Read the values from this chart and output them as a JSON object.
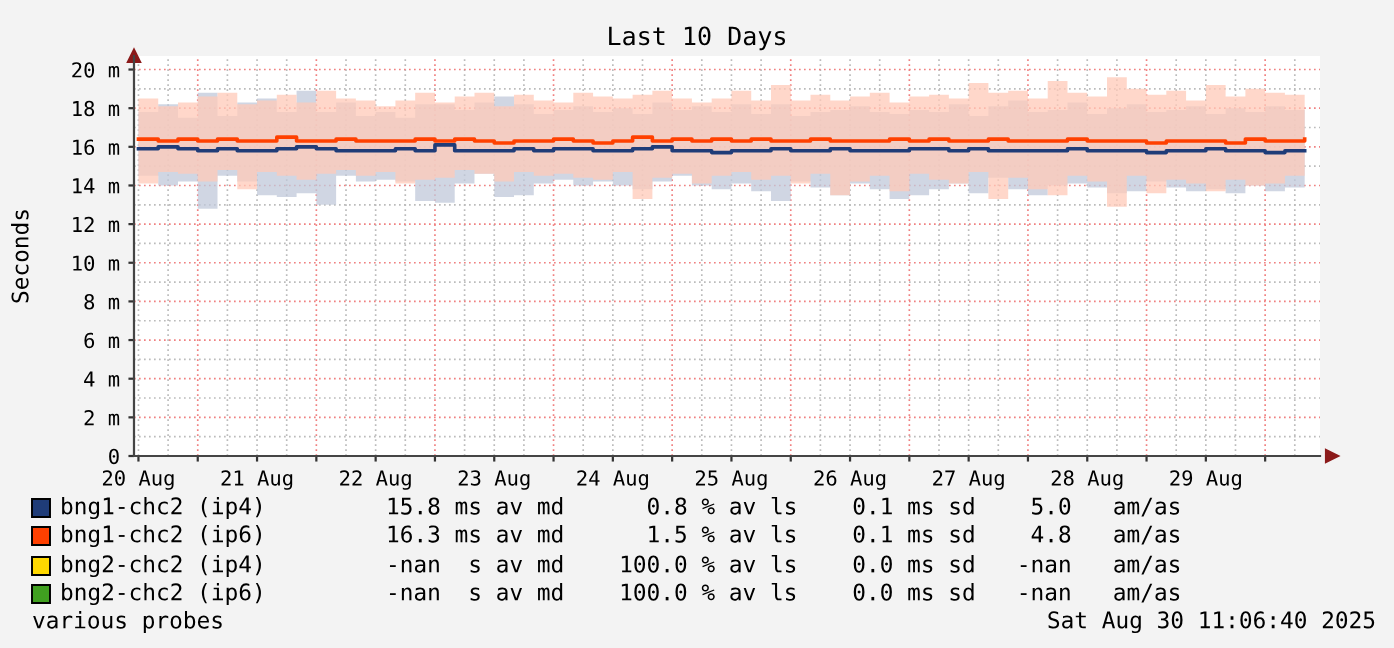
{
  "chart_data": {
    "type": "step",
    "title": "Last 10 Days",
    "ylabel": "Seconds",
    "x": [
      "2025-08-20T12:00",
      "2025-08-20T16:00",
      "2025-08-20T20:00",
      "2025-08-21T00:00",
      "2025-08-21T04:00",
      "2025-08-21T08:00",
      "2025-08-21T12:00",
      "2025-08-21T16:00",
      "2025-08-21T20:00",
      "2025-08-22T00:00",
      "2025-08-22T04:00",
      "2025-08-22T08:00",
      "2025-08-22T12:00",
      "2025-08-22T16:00",
      "2025-08-22T20:00",
      "2025-08-23T00:00",
      "2025-08-23T04:00",
      "2025-08-23T08:00",
      "2025-08-23T12:00",
      "2025-08-23T16:00",
      "2025-08-23T20:00",
      "2025-08-24T00:00",
      "2025-08-24T04:00",
      "2025-08-24T08:00",
      "2025-08-24T12:00",
      "2025-08-24T16:00",
      "2025-08-24T20:00",
      "2025-08-25T00:00",
      "2025-08-25T04:00",
      "2025-08-25T08:00",
      "2025-08-25T12:00",
      "2025-08-25T16:00",
      "2025-08-25T20:00",
      "2025-08-26T00:00",
      "2025-08-26T04:00",
      "2025-08-26T08:00",
      "2025-08-26T12:00",
      "2025-08-26T16:00",
      "2025-08-26T20:00",
      "2025-08-27T00:00",
      "2025-08-27T04:00",
      "2025-08-27T08:00",
      "2025-08-27T12:00",
      "2025-08-27T16:00",
      "2025-08-27T20:00",
      "2025-08-28T00:00",
      "2025-08-28T04:00",
      "2025-08-28T08:00",
      "2025-08-28T12:00",
      "2025-08-28T16:00",
      "2025-08-28T20:00",
      "2025-08-29T00:00",
      "2025-08-29T04:00",
      "2025-08-29T08:00",
      "2025-08-29T12:00",
      "2025-08-29T16:00",
      "2025-08-29T20:00",
      "2025-08-30T00:00",
      "2025-08-30T04:00",
      "2025-08-30T08:00"
    ],
    "series": [
      {
        "name": "bng1-chc2 (ip4)",
        "color": "#1f3c78",
        "values": [
          15.9,
          16.0,
          15.9,
          15.8,
          15.9,
          15.8,
          15.8,
          15.9,
          16.0,
          15.9,
          15.8,
          15.8,
          15.8,
          15.9,
          15.8,
          16.1,
          15.8,
          15.8,
          15.8,
          15.9,
          15.8,
          15.9,
          15.9,
          15.8,
          15.8,
          15.9,
          16.0,
          15.8,
          15.8,
          15.7,
          15.8,
          15.8,
          15.9,
          15.8,
          15.8,
          15.9,
          15.8,
          15.8,
          15.8,
          15.9,
          15.9,
          15.8,
          15.9,
          15.8,
          15.8,
          15.8,
          15.8,
          15.9,
          15.8,
          15.8,
          15.8,
          15.7,
          15.8,
          15.8,
          15.9,
          15.8,
          15.8,
          15.7,
          15.8,
          15.8
        ],
        "lower": [
          14.5,
          14.0,
          14.2,
          12.8,
          14.5,
          14.2,
          13.5,
          13.4,
          13.6,
          13.0,
          14.5,
          14.2,
          14.3,
          14.2,
          13.2,
          13.1,
          14.1,
          14.6,
          13.4,
          13.5,
          14.1,
          14.3,
          14.0,
          14.2,
          14.0,
          13.8,
          14.2,
          14.5,
          14.0,
          13.8,
          14.1,
          13.7,
          13.2,
          14.2,
          13.9,
          13.5,
          14.1,
          13.8,
          13.3,
          13.5,
          13.8,
          14.1,
          13.6,
          14.4,
          13.8,
          13.5,
          14.0,
          14.1,
          13.9,
          13.6,
          13.7,
          14.2,
          13.9,
          13.7,
          13.8,
          13.6,
          14.0,
          13.7,
          13.9,
          14.0
        ],
        "upper": [
          17.8,
          18.2,
          17.5,
          18.8,
          17.6,
          18.3,
          18.5,
          17.8,
          18.9,
          17.8,
          18.3,
          17.6,
          17.8,
          17.5,
          18.2,
          18.2,
          17.9,
          18.3,
          18.6,
          18.2,
          17.7,
          17.9,
          18.1,
          17.8,
          18.0,
          17.7,
          18.3,
          17.9,
          18.1,
          17.8,
          18.2,
          17.7,
          18.2,
          17.6,
          17.8,
          17.9,
          18.1,
          17.8,
          17.7,
          17.9,
          17.8,
          18.2,
          17.6,
          18.1,
          18.4,
          17.8,
          17.9,
          18.3,
          17.7,
          18.0,
          18.2,
          17.8,
          17.9,
          18.1,
          17.7,
          18.0,
          17.8,
          18.1,
          17.9,
          17.8
        ]
      },
      {
        "name": "bng1-chc2 (ip6)",
        "color": "#ff4000",
        "values": [
          16.4,
          16.3,
          16.4,
          16.3,
          16.4,
          16.3,
          16.3,
          16.5,
          16.3,
          16.3,
          16.4,
          16.3,
          16.3,
          16.3,
          16.4,
          16.3,
          16.4,
          16.3,
          16.2,
          16.3,
          16.3,
          16.4,
          16.3,
          16.2,
          16.3,
          16.5,
          16.3,
          16.4,
          16.3,
          16.4,
          16.3,
          16.4,
          16.3,
          16.3,
          16.4,
          16.3,
          16.3,
          16.3,
          16.4,
          16.3,
          16.4,
          16.3,
          16.3,
          16.4,
          16.3,
          16.3,
          16.3,
          16.4,
          16.3,
          16.3,
          16.3,
          16.2,
          16.3,
          16.3,
          16.3,
          16.2,
          16.4,
          16.3,
          16.3,
          16.4
        ],
        "lower": [
          14.1,
          14.7,
          14.6,
          14.2,
          14.8,
          13.8,
          14.7,
          14.5,
          14.3,
          14.6,
          14.8,
          14.5,
          14.7,
          14.1,
          14.3,
          14.4,
          14.8,
          14.6,
          14.2,
          14.7,
          14.5,
          14.6,
          14.4,
          14.3,
          14.7,
          13.3,
          14.4,
          14.6,
          14.1,
          14.5,
          14.7,
          14.3,
          14.5,
          14.1,
          14.6,
          13.5,
          14.2,
          14.5,
          13.7,
          14.6,
          14.3,
          14.1,
          14.7,
          13.3,
          14.4,
          13.8,
          13.5,
          14.5,
          14.2,
          12.9,
          14.5,
          13.6,
          14.3,
          14.1,
          13.7,
          14.3,
          14.0,
          14.1,
          14.5,
          14.2
        ],
        "upper": [
          18.5,
          18.1,
          18.3,
          18.6,
          18.8,
          18.2,
          18.4,
          18.7,
          18.3,
          18.9,
          18.5,
          18.4,
          18.1,
          18.4,
          18.8,
          18.3,
          18.6,
          18.8,
          18.1,
          18.7,
          18.4,
          18.3,
          18.8,
          18.6,
          18.5,
          18.7,
          18.9,
          18.5,
          18.3,
          18.5,
          18.9,
          18.4,
          19.2,
          18.4,
          18.7,
          18.4,
          18.6,
          18.8,
          18.3,
          18.6,
          18.7,
          18.5,
          19.3,
          18.8,
          18.9,
          18.5,
          19.4,
          18.8,
          18.6,
          19.6,
          19.0,
          18.7,
          18.9,
          18.4,
          19.2,
          18.6,
          19.0,
          18.8,
          18.7,
          18.6
        ]
      },
      {
        "name": "bng2-chc2 (ip4)",
        "color": "#ffd800",
        "values": [
          null,
          null,
          null,
          null,
          null,
          null,
          null,
          null,
          null,
          null,
          null,
          null,
          null,
          null,
          null,
          null,
          null,
          null,
          null,
          null,
          null,
          null,
          null,
          null,
          null,
          null,
          null,
          null,
          null,
          null,
          null,
          null,
          null,
          null,
          null,
          null,
          null,
          null,
          null,
          null,
          null,
          null,
          null,
          null,
          null,
          null,
          null,
          null,
          null,
          null,
          null,
          null,
          null,
          null,
          null,
          null,
          null,
          null,
          null,
          null
        ]
      },
      {
        "name": "bng2-chc2 (ip6)",
        "color": "#40a020",
        "values": [
          null,
          null,
          null,
          null,
          null,
          null,
          null,
          null,
          null,
          null,
          null,
          null,
          null,
          null,
          null,
          null,
          null,
          null,
          null,
          null,
          null,
          null,
          null,
          null,
          null,
          null,
          null,
          null,
          null,
          null,
          null,
          null,
          null,
          null,
          null,
          null,
          null,
          null,
          null,
          null,
          null,
          null,
          null,
          null,
          null,
          null,
          null,
          null,
          null,
          null,
          null,
          null,
          null,
          null,
          null,
          null,
          null,
          null,
          null,
          null
        ]
      }
    ],
    "xlim": [
      "2025-08-20T11:06",
      "2025-08-30T11:06"
    ],
    "xticks": [
      {
        "value": "2025-08-20T12:00",
        "label": "20 Aug"
      },
      {
        "value": "2025-08-21T00:00",
        "label": null
      },
      {
        "value": "2025-08-21T12:00",
        "label": "21 Aug"
      },
      {
        "value": "2025-08-22T00:00",
        "label": null
      },
      {
        "value": "2025-08-22T12:00",
        "label": "22 Aug"
      },
      {
        "value": "2025-08-23T00:00",
        "label": null
      },
      {
        "value": "2025-08-23T12:00",
        "label": "23 Aug"
      },
      {
        "value": "2025-08-24T00:00",
        "label": null
      },
      {
        "value": "2025-08-24T12:00",
        "label": "24 Aug"
      },
      {
        "value": "2025-08-25T00:00",
        "label": null
      },
      {
        "value": "2025-08-25T12:00",
        "label": "25 Aug"
      },
      {
        "value": "2025-08-26T00:00",
        "label": null
      },
      {
        "value": "2025-08-26T12:00",
        "label": "26 Aug"
      },
      {
        "value": "2025-08-27T00:00",
        "label": null
      },
      {
        "value": "2025-08-27T12:00",
        "label": "27 Aug"
      },
      {
        "value": "2025-08-28T00:00",
        "label": null
      },
      {
        "value": "2025-08-28T12:00",
        "label": "28 Aug"
      },
      {
        "value": "2025-08-29T00:00",
        "label": null
      },
      {
        "value": "2025-08-29T12:00",
        "label": "29 Aug"
      },
      {
        "value": "2025-08-30T00:00",
        "label": null
      }
    ],
    "ylim": [
      0,
      20.7
    ],
    "yticks": [
      0,
      {
        "value": 2,
        "label": "2 m"
      },
      {
        "value": 4,
        "label": "4 m"
      },
      {
        "value": 6,
        "label": "6 m"
      },
      {
        "value": 8,
        "label": "8 m"
      },
      {
        "value": 10,
        "label": "10 m"
      },
      {
        "value": 12,
        "label": "12 m"
      },
      {
        "value": 14,
        "label": "14 m"
      },
      {
        "value": 16,
        "label": "16 m"
      },
      {
        "value": 18,
        "label": "18 m"
      },
      {
        "value": 20,
        "label": "20 m"
      }
    ],
    "grid": true,
    "legend": "bottom",
    "annotations": [
      "15.8 ms av md      0.8 % av ls    0.1 ms sd    5.0   am/as",
      "16.3 ms av md      1.5 % av ls    0.1 ms sd    4.8   am/as",
      "-nan  s av md    100.0 % av ls    0.0 ms sd   -nan   am/as",
      "-nan  s av md    100.0 % av ls    0.0 ms sd   -nan   am/as",
      "various probes",
      "Sat Aug 30 11:06:40 2025"
    ]
  }
}
